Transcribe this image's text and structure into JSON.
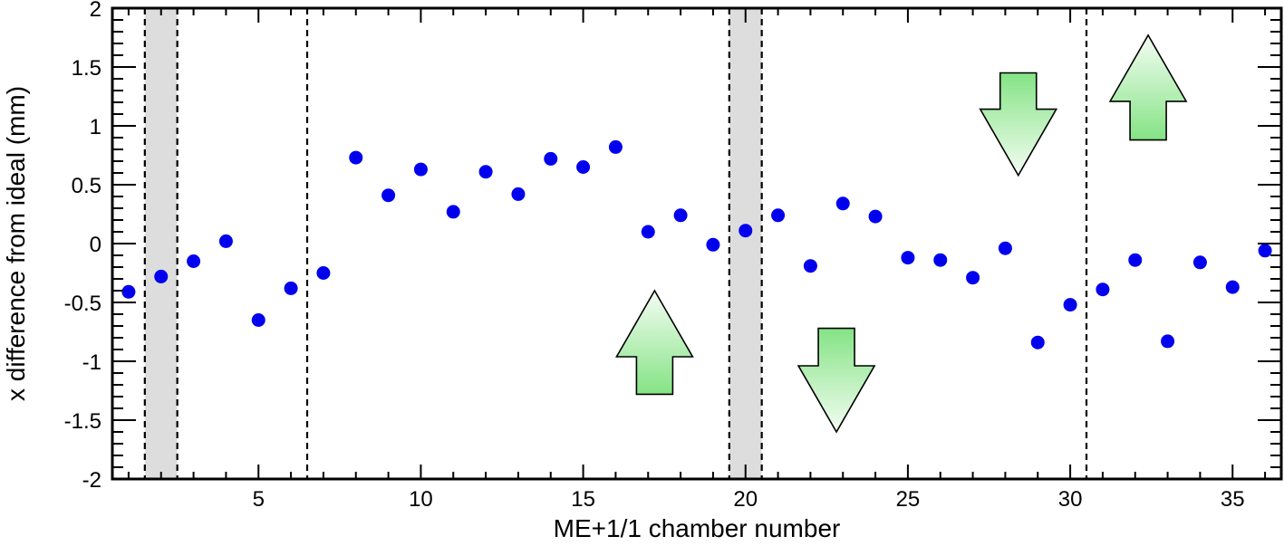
{
  "chart_data": {
    "type": "scatter",
    "title": "",
    "xlabel": "ME+1/1 chamber number",
    "ylabel": "x difference from ideal (mm)",
    "xlim": [
      0.5,
      36.5
    ],
    "ylim": [
      -2,
      2
    ],
    "x_ticks": [
      5,
      10,
      15,
      20,
      25,
      30,
      35
    ],
    "y_ticks": [
      -2,
      -1.5,
      -1,
      -0.5,
      0,
      0.5,
      1,
      1.5,
      2
    ],
    "y_tick_labels": [
      "-2",
      "-1.5",
      "-1",
      "-0.5",
      "0",
      "0.5",
      "1",
      "1.5",
      "2"
    ],
    "marker_color": "#0000ee",
    "grid": false,
    "series": [
      {
        "x": [
          1,
          2,
          3,
          4,
          5,
          6,
          7,
          8,
          9,
          10,
          11,
          12,
          13,
          14,
          15,
          16,
          17,
          18,
          19,
          20,
          21,
          22,
          23,
          24,
          25,
          26,
          27,
          28,
          29,
          30,
          31,
          32,
          33,
          34,
          35,
          36
        ],
        "y": [
          -0.41,
          -0.28,
          -0.15,
          0.02,
          -0.65,
          -0.38,
          -0.25,
          0.73,
          0.41,
          0.63,
          0.27,
          0.61,
          0.42,
          0.72,
          0.65,
          0.82,
          0.1,
          0.24,
          -0.01,
          0.11,
          0.24,
          -0.19,
          0.34,
          0.23,
          -0.12,
          -0.14,
          -0.29,
          -0.04,
          -0.84,
          -0.52,
          -0.39,
          -0.14,
          -0.83,
          -0.16,
          -0.37,
          -0.06
        ]
      }
    ],
    "shaded_bands": [
      {
        "x_from": 1.5,
        "x_to": 2.5,
        "color": "#dddddd"
      },
      {
        "x_from": 19.5,
        "x_to": 20.5,
        "color": "#dddddd"
      }
    ],
    "dashed_lines_x": [
      1.5,
      2.5,
      6.5,
      19.5,
      20.5,
      30.5
    ],
    "arrows": [
      {
        "direction": "up",
        "x_center": 17.2,
        "y_tip": -0.4,
        "y_tail": -1.28
      },
      {
        "direction": "down",
        "x_center": 22.8,
        "y_tip": -1.6,
        "y_tail": -0.72
      },
      {
        "direction": "down",
        "x_center": 28.4,
        "y_tip": 0.58,
        "y_tail": 1.45
      },
      {
        "direction": "up",
        "x_center": 32.4,
        "y_tip": 1.77,
        "y_tail": 0.88
      }
    ],
    "arrow_colors": {
      "fill_dark": "#84e384",
      "fill_light": "#f4fdf4",
      "stroke": "#000000"
    }
  }
}
